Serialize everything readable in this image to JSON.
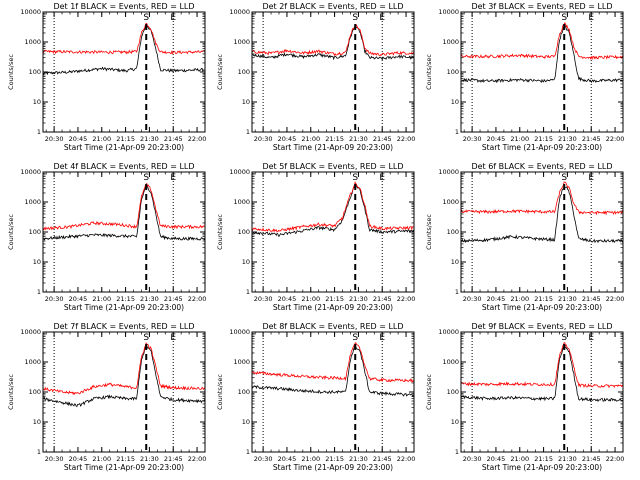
{
  "chart_data": [
    {
      "type": "line",
      "title": "Det 1f BLACK = Events, RED = LLD",
      "xlabel": "Start Time (21-Apr-09 20:23:00)",
      "ylabel": "Counts/sec",
      "yscale": "log",
      "ylim": [
        1,
        10000
      ],
      "x_range": [
        "20:23",
        "22:05"
      ],
      "x_ticks": [
        "20:30",
        "20:45",
        "21:00",
        "21:15",
        "21:30",
        "21:45",
        "22:00"
      ],
      "y_ticks": [
        "1",
        "10",
        "100",
        "1000",
        "10000"
      ],
      "dotted_vlines": [
        "20:30",
        "21:45"
      ],
      "dashed_vline": "21:28",
      "markers": [
        {
          "label": "S",
          "at": "21:28"
        },
        {
          "label": "E",
          "at": "21:45"
        }
      ],
      "series": [
        {
          "color": "#000000",
          "x": [
            "20:23",
            "20:40",
            "21:00",
            "21:15",
            "21:22",
            "21:25",
            "21:28",
            "21:31",
            "21:34",
            "21:37",
            "21:45",
            "22:05"
          ],
          "values": [
            90,
            100,
            130,
            110,
            130,
            1500,
            3800,
            2400,
            600,
            120,
            110,
            120
          ]
        },
        {
          "color": "#ff0000",
          "x": [
            "20:23",
            "20:40",
            "21:00",
            "21:15",
            "21:22",
            "21:25",
            "21:28",
            "21:31",
            "21:34",
            "21:37",
            "21:45",
            "22:05"
          ],
          "values": [
            480,
            470,
            460,
            460,
            480,
            2000,
            4200,
            2800,
            900,
            470,
            450,
            470
          ]
        }
      ]
    },
    {
      "type": "line",
      "title": "Det 2f BLACK = Events, RED = LLD",
      "xlabel": "Start Time (21-Apr-09 20:23:00)",
      "ylabel": "Counts/sec",
      "yscale": "log",
      "ylim": [
        1,
        10000
      ],
      "x_range": [
        "20:23",
        "22:05"
      ],
      "x_ticks": [
        "20:30",
        "20:45",
        "21:00",
        "21:15",
        "21:30",
        "21:45",
        "22:00"
      ],
      "y_ticks": [
        "1",
        "10",
        "100",
        "1000",
        "10000"
      ],
      "dotted_vlines": [
        "20:30",
        "21:45"
      ],
      "dashed_vline": "21:28",
      "markers": [
        {
          "label": "S",
          "at": "21:28"
        },
        {
          "label": "E",
          "at": "21:45"
        }
      ],
      "series": [
        {
          "color": "#000000",
          "x": [
            "20:23",
            "20:35",
            "20:45",
            "20:55",
            "21:05",
            "21:15",
            "21:22",
            "21:25",
            "21:28",
            "21:31",
            "21:34",
            "21:37",
            "21:45",
            "21:55",
            "22:05"
          ],
          "values": [
            380,
            300,
            400,
            320,
            380,
            300,
            350,
            1500,
            3500,
            2200,
            500,
            300,
            280,
            330,
            300
          ]
        },
        {
          "color": "#ff0000",
          "x": [
            "20:23",
            "20:35",
            "20:45",
            "20:55",
            "21:05",
            "21:15",
            "21:22",
            "21:25",
            "21:28",
            "21:31",
            "21:34",
            "21:37",
            "21:45",
            "21:55",
            "22:05"
          ],
          "values": [
            480,
            420,
            520,
            430,
            500,
            400,
            450,
            1800,
            3800,
            2500,
            650,
            420,
            380,
            440,
            420
          ]
        }
      ]
    },
    {
      "type": "line",
      "title": "Det 3f BLACK = Events, RED = LLD",
      "xlabel": "Start Time (21-Apr-09 20:23:00)",
      "ylabel": "Counts/sec",
      "yscale": "log",
      "ylim": [
        1,
        10000
      ],
      "x_range": [
        "20:23",
        "22:05"
      ],
      "x_ticks": [
        "20:30",
        "20:45",
        "21:00",
        "21:15",
        "21:30",
        "21:45",
        "22:00"
      ],
      "y_ticks": [
        "1",
        "10",
        "100",
        "1000",
        "10000"
      ],
      "dotted_vlines": [
        "20:30",
        "21:45"
      ],
      "dashed_vline": "21:28",
      "markers": [
        {
          "label": "S",
          "at": "21:28"
        },
        {
          "label": "E",
          "at": "21:45"
        }
      ],
      "series": [
        {
          "color": "#000000",
          "x": [
            "20:23",
            "20:40",
            "21:00",
            "21:15",
            "21:22",
            "21:25",
            "21:28",
            "21:31",
            "21:34",
            "21:37",
            "21:45",
            "22:05"
          ],
          "values": [
            55,
            50,
            55,
            50,
            55,
            1200,
            3500,
            2200,
            400,
            60,
            50,
            55
          ]
        },
        {
          "color": "#ff0000",
          "x": [
            "20:23",
            "20:40",
            "21:00",
            "21:15",
            "21:22",
            "21:25",
            "21:28",
            "21:31",
            "21:34",
            "21:37",
            "21:45",
            "22:05"
          ],
          "values": [
            330,
            330,
            360,
            320,
            330,
            1800,
            4200,
            2800,
            700,
            330,
            300,
            320
          ]
        }
      ]
    },
    {
      "type": "line",
      "title": "Det 4f BLACK = Events, RED = LLD",
      "xlabel": "Start Time (21-Apr-09 20:23:00)",
      "ylabel": "Counts/sec",
      "yscale": "log",
      "ylim": [
        1,
        10000
      ],
      "x_range": [
        "20:23",
        "22:05"
      ],
      "x_ticks": [
        "20:30",
        "20:45",
        "21:00",
        "21:15",
        "21:30",
        "21:45",
        "22:00"
      ],
      "y_ticks": [
        "1",
        "10",
        "100",
        "1000",
        "10000"
      ],
      "dotted_vlines": [
        "20:30",
        "21:45"
      ],
      "dashed_vline": "21:28",
      "markers": [
        {
          "label": "S",
          "at": "21:28"
        },
        {
          "label": "E",
          "at": "21:45"
        }
      ],
      "series": [
        {
          "color": "#000000",
          "x": [
            "20:23",
            "20:40",
            "20:55",
            "21:10",
            "21:22",
            "21:25",
            "21:28",
            "21:31",
            "21:34",
            "21:37",
            "21:45",
            "22:05"
          ],
          "values": [
            60,
            70,
            80,
            75,
            70,
            1200,
            3500,
            2200,
            400,
            70,
            60,
            60
          ]
        },
        {
          "color": "#ff0000",
          "x": [
            "20:23",
            "20:40",
            "20:55",
            "21:10",
            "21:22",
            "21:25",
            "21:28",
            "21:31",
            "21:34",
            "21:37",
            "21:45",
            "22:05"
          ],
          "values": [
            130,
            150,
            200,
            180,
            150,
            1500,
            4000,
            2600,
            600,
            160,
            150,
            150
          ]
        }
      ]
    },
    {
      "type": "line",
      "title": "Det 5f BLACK = Events, RED = LLD",
      "xlabel": "Start Time (21-Apr-09 20:23:00)",
      "ylabel": "Counts/sec",
      "yscale": "log",
      "ylim": [
        1,
        10000
      ],
      "x_range": [
        "20:23",
        "22:05"
      ],
      "x_ticks": [
        "20:30",
        "20:45",
        "21:00",
        "21:15",
        "21:30",
        "21:45",
        "22:00"
      ],
      "y_ticks": [
        "1",
        "10",
        "100",
        "1000",
        "10000"
      ],
      "dotted_vlines": [
        "20:30",
        "21:45"
      ],
      "dashed_vline": "21:28",
      "markers": [
        {
          "label": "S",
          "at": "21:28"
        },
        {
          "label": "E",
          "at": "21:45"
        }
      ],
      "series": [
        {
          "color": "#000000",
          "x": [
            "20:23",
            "20:40",
            "20:55",
            "21:05",
            "21:15",
            "21:20",
            "21:25",
            "21:28",
            "21:31",
            "21:34",
            "21:37",
            "21:45",
            "22:05"
          ],
          "values": [
            100,
            80,
            110,
            140,
            120,
            250,
            1500,
            3800,
            2500,
            600,
            120,
            100,
            110
          ]
        },
        {
          "color": "#ff0000",
          "x": [
            "20:23",
            "20:40",
            "20:55",
            "21:05",
            "21:15",
            "21:20",
            "21:25",
            "21:28",
            "21:31",
            "21:34",
            "21:37",
            "21:45",
            "22:05"
          ],
          "values": [
            130,
            110,
            150,
            180,
            160,
            300,
            1800,
            4200,
            2800,
            800,
            160,
            130,
            140
          ]
        }
      ]
    },
    {
      "type": "line",
      "title": "Det 6f BLACK = Events, RED = LLD",
      "xlabel": "Start Time (21-Apr-09 20:23:00)",
      "ylabel": "Counts/sec",
      "yscale": "log",
      "ylim": [
        1,
        10000
      ],
      "x_range": [
        "20:23",
        "22:05"
      ],
      "x_ticks": [
        "20:30",
        "20:45",
        "21:00",
        "21:15",
        "21:30",
        "21:45",
        "22:00"
      ],
      "y_ticks": [
        "1",
        "10",
        "100",
        "1000",
        "10000"
      ],
      "dotted_vlines": [
        "20:30",
        "21:45"
      ],
      "dashed_vline": "21:28",
      "markers": [
        {
          "label": "S",
          "at": "21:28"
        },
        {
          "label": "E",
          "at": "21:45"
        }
      ],
      "series": [
        {
          "color": "#000000",
          "x": [
            "20:23",
            "20:40",
            "20:55",
            "21:10",
            "21:22",
            "21:25",
            "21:28",
            "21:31",
            "21:34",
            "21:37",
            "21:45",
            "22:05"
          ],
          "values": [
            50,
            55,
            70,
            60,
            55,
            1300,
            3500,
            2300,
            400,
            60,
            50,
            50
          ]
        },
        {
          "color": "#ff0000",
          "x": [
            "20:23",
            "20:40",
            "20:55",
            "21:10",
            "21:22",
            "21:25",
            "21:28",
            "21:31",
            "21:34",
            "21:37",
            "21:45",
            "22:05"
          ],
          "values": [
            480,
            470,
            500,
            480,
            470,
            2000,
            4500,
            3000,
            900,
            460,
            440,
            450
          ]
        }
      ]
    },
    {
      "type": "line",
      "title": "Det 7f BLACK = Events, RED = LLD",
      "xlabel": "Start Time (21-Apr-09 20:23:00)",
      "ylabel": "Counts/sec",
      "yscale": "log",
      "ylim": [
        1,
        10000
      ],
      "x_range": [
        "20:23",
        "22:05"
      ],
      "x_ticks": [
        "20:30",
        "20:45",
        "21:00",
        "21:15",
        "21:30",
        "21:45",
        "22:00"
      ],
      "y_ticks": [
        "1",
        "10",
        "100",
        "1000",
        "10000"
      ],
      "dotted_vlines": [
        "20:30",
        "21:45"
      ],
      "dashed_vline": "21:28",
      "markers": [
        {
          "label": "S",
          "at": "21:28"
        },
        {
          "label": "E",
          "at": "21:45"
        }
      ],
      "series": [
        {
          "color": "#000000",
          "x": [
            "20:23",
            "20:35",
            "20:45",
            "20:55",
            "21:05",
            "21:15",
            "21:22",
            "21:25",
            "21:28",
            "21:31",
            "21:34",
            "21:37",
            "21:45",
            "22:05"
          ],
          "values": [
            60,
            45,
            35,
            60,
            70,
            60,
            60,
            1200,
            3500,
            2300,
            400,
            70,
            55,
            50
          ]
        },
        {
          "color": "#ff0000",
          "x": [
            "20:23",
            "20:35",
            "20:45",
            "20:55",
            "21:05",
            "21:15",
            "21:22",
            "21:25",
            "21:28",
            "21:31",
            "21:34",
            "21:37",
            "21:45",
            "22:05"
          ],
          "values": [
            130,
            100,
            90,
            150,
            180,
            150,
            140,
            1500,
            4200,
            2800,
            700,
            160,
            140,
            130
          ]
        }
      ]
    },
    {
      "type": "line",
      "title": "Det 8f BLACK = Events, RED = LLD",
      "xlabel": "Start Time (21-Apr-09 20:23:00)",
      "ylabel": "Counts/sec",
      "yscale": "log",
      "ylim": [
        1,
        10000
      ],
      "x_range": [
        "20:23",
        "22:05"
      ],
      "x_ticks": [
        "20:30",
        "20:45",
        "21:00",
        "21:15",
        "21:30",
        "21:45",
        "22:00"
      ],
      "y_ticks": [
        "1",
        "10",
        "100",
        "1000",
        "10000"
      ],
      "dotted_vlines": [
        "20:30",
        "21:45"
      ],
      "dashed_vline": "21:28",
      "markers": [
        {
          "label": "S",
          "at": "21:28"
        },
        {
          "label": "E",
          "at": "21:45"
        }
      ],
      "series": [
        {
          "color": "#000000",
          "x": [
            "20:23",
            "20:40",
            "20:55",
            "21:10",
            "21:22",
            "21:25",
            "21:28",
            "21:31",
            "21:34",
            "21:37",
            "21:45",
            "22:05"
          ],
          "values": [
            150,
            130,
            110,
            100,
            100,
            1300,
            3500,
            2300,
            500,
            100,
            90,
            80
          ]
        },
        {
          "color": "#ff0000",
          "x": [
            "20:23",
            "20:40",
            "20:55",
            "21:10",
            "21:22",
            "21:25",
            "21:28",
            "21:31",
            "21:34",
            "21:37",
            "21:45",
            "22:05"
          ],
          "values": [
            450,
            380,
            330,
            300,
            290,
            1800,
            4200,
            2800,
            800,
            280,
            250,
            240
          ]
        }
      ]
    },
    {
      "type": "line",
      "title": "Det 9f BLACK = Events, RED = LLD",
      "xlabel": "Start Time (21-Apr-09 20:23:00)",
      "ylabel": "Counts/sec",
      "yscale": "log",
      "ylim": [
        1,
        10000
      ],
      "x_range": [
        "20:23",
        "22:05"
      ],
      "x_ticks": [
        "20:30",
        "20:45",
        "21:00",
        "21:15",
        "21:30",
        "21:45",
        "22:00"
      ],
      "y_ticks": [
        "1",
        "10",
        "100",
        "1000",
        "10000"
      ],
      "dotted_vlines": [
        "20:30",
        "21:45"
      ],
      "dashed_vline": "21:28",
      "markers": [
        {
          "label": "S",
          "at": "21:28"
        },
        {
          "label": "E",
          "at": "21:45"
        }
      ],
      "series": [
        {
          "color": "#000000",
          "x": [
            "20:23",
            "20:40",
            "20:55",
            "21:10",
            "21:22",
            "21:25",
            "21:28",
            "21:31",
            "21:34",
            "21:37",
            "21:45",
            "22:05"
          ],
          "values": [
            70,
            60,
            65,
            60,
            60,
            1200,
            3500,
            2300,
            400,
            60,
            55,
            55
          ]
        },
        {
          "color": "#ff0000",
          "x": [
            "20:23",
            "20:40",
            "20:55",
            "21:10",
            "21:22",
            "21:25",
            "21:28",
            "21:31",
            "21:34",
            "21:37",
            "21:45",
            "22:05"
          ],
          "values": [
            190,
            180,
            190,
            180,
            180,
            1600,
            4200,
            2800,
            700,
            170,
            160,
            160
          ]
        }
      ]
    }
  ]
}
